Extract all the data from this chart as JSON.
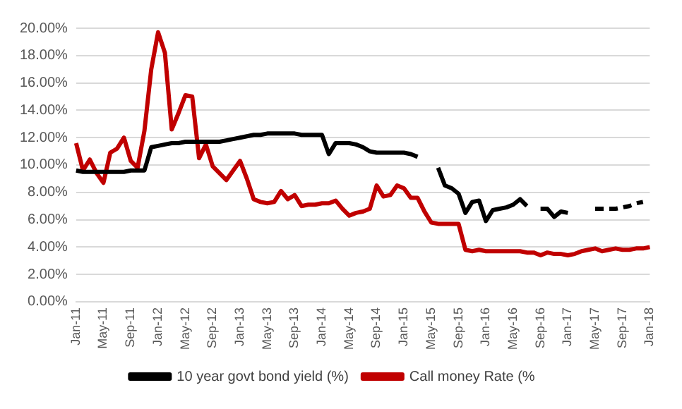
{
  "chart_data": {
    "type": "line",
    "categories": [
      "Jan-11",
      null,
      null,
      null,
      "May-11",
      null,
      null,
      null,
      "Sep-11",
      null,
      null,
      null,
      "Jan-12",
      null,
      null,
      null,
      "May-12",
      null,
      null,
      null,
      "Sep-12",
      null,
      null,
      null,
      "Jan-13",
      null,
      null,
      null,
      "May-13",
      null,
      null,
      null,
      "Sep-13",
      null,
      null,
      null,
      "Jan-14",
      null,
      null,
      null,
      "May-14",
      null,
      null,
      null,
      "Sep-14",
      null,
      null,
      null,
      "Jan-15",
      null,
      null,
      null,
      "May-15",
      null,
      null,
      null,
      "Sep-15",
      null,
      null,
      null,
      "Jan-16",
      null,
      null,
      null,
      "May-16",
      null,
      null,
      null,
      "Sep-16",
      null,
      null,
      null,
      "Jan-17",
      null,
      null,
      null,
      "May-17",
      null,
      null,
      null,
      "Sep-17",
      null,
      null,
      null,
      "Jan-18"
    ],
    "series": [
      {
        "name": "10 year govt bond yield (%)",
        "color": "#000000",
        "values": [
          9.6,
          9.5,
          9.5,
          9.5,
          9.5,
          9.5,
          9.5,
          9.5,
          9.6,
          9.6,
          9.6,
          11.3,
          11.4,
          11.5,
          11.6,
          11.6,
          11.7,
          11.7,
          11.7,
          11.7,
          11.7,
          11.7,
          11.8,
          11.9,
          12.0,
          12.1,
          12.2,
          12.2,
          12.3,
          12.3,
          12.3,
          12.3,
          12.3,
          12.2,
          12.2,
          12.2,
          12.2,
          10.8,
          11.6,
          11.6,
          11.6,
          11.5,
          11.3,
          11.0,
          10.9,
          10.9,
          10.9,
          10.9,
          10.9,
          10.8,
          10.6,
          null,
          null,
          9.8,
          8.5,
          8.3,
          7.9,
          6.5,
          7.3,
          7.4,
          5.9,
          6.7,
          6.8,
          6.9,
          7.1,
          7.5,
          7.0,
          null,
          6.8,
          6.8,
          6.2,
          6.6,
          6.5,
          null,
          null,
          null,
          null,
          null,
          null,
          null,
          null,
          null,
          null,
          null,
          null
        ]
      },
      {
        "color": "#000000",
        "line_style": "dashed",
        "values": [
          null,
          null,
          null,
          null,
          null,
          null,
          null,
          null,
          null,
          null,
          null,
          null,
          null,
          null,
          null,
          null,
          null,
          null,
          null,
          null,
          null,
          null,
          null,
          null,
          null,
          null,
          null,
          null,
          null,
          null,
          null,
          null,
          null,
          null,
          null,
          null,
          null,
          null,
          null,
          null,
          null,
          null,
          null,
          null,
          null,
          null,
          null,
          null,
          null,
          null,
          null,
          null,
          null,
          null,
          null,
          null,
          null,
          null,
          null,
          null,
          null,
          null,
          null,
          null,
          null,
          null,
          null,
          null,
          null,
          null,
          null,
          null,
          null,
          null,
          null,
          null,
          6.8,
          6.8,
          6.8,
          6.8,
          6.9,
          7.0,
          7.2,
          7.3,
          null
        ]
      },
      {
        "name": "Call money Rate (%",
        "color": "#c00000",
        "values": [
          11.6,
          9.6,
          10.4,
          9.4,
          8.7,
          10.9,
          11.2,
          12.0,
          10.3,
          9.8,
          12.5,
          17.0,
          19.7,
          18.2,
          12.6,
          13.8,
          15.1,
          15.0,
          10.5,
          11.5,
          9.9,
          9.4,
          8.9,
          9.6,
          10.3,
          9.0,
          7.5,
          7.3,
          7.2,
          7.3,
          8.1,
          7.5,
          7.8,
          7.0,
          7.1,
          7.1,
          7.2,
          7.2,
          7.4,
          6.8,
          6.3,
          6.5,
          6.6,
          6.8,
          8.5,
          7.7,
          7.8,
          8.5,
          8.3,
          7.6,
          7.6,
          6.6,
          5.8,
          5.7,
          5.7,
          5.7,
          5.7,
          3.8,
          3.7,
          3.8,
          3.7,
          3.7,
          3.7,
          3.7,
          3.7,
          3.7,
          3.6,
          3.6,
          3.4,
          3.6,
          3.5,
          3.5,
          3.4,
          3.5,
          3.7,
          3.8,
          3.9,
          3.7,
          3.8,
          3.9,
          3.8,
          3.8,
          3.9,
          3.9,
          4.0
        ]
      }
    ],
    "ylim": [
      0,
      20
    ],
    "yticks": [
      {
        "value": 0,
        "label": "0.00%"
      },
      {
        "value": 2,
        "label": "2.00%"
      },
      {
        "value": 4,
        "label": "4.00%"
      },
      {
        "value": 6,
        "label": "6.00%"
      },
      {
        "value": 8,
        "label": "8.00%"
      },
      {
        "value": 10,
        "label": "10.00%"
      },
      {
        "value": 12,
        "label": "12.00%"
      },
      {
        "value": 14,
        "label": "14.00%"
      },
      {
        "value": 16,
        "label": "16.00%"
      },
      {
        "value": 18,
        "label": "18.00%"
      },
      {
        "value": 20,
        "label": "20.00%"
      }
    ],
    "grid": "y",
    "legend": "bottom",
    "marker": "none",
    "line_style": "solid"
  }
}
